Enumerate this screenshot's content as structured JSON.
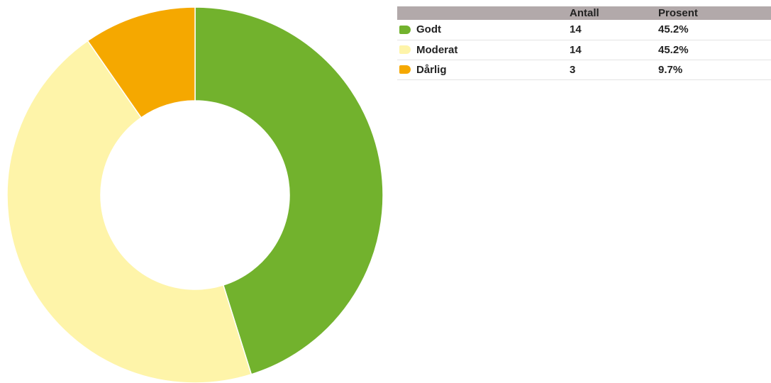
{
  "chart_data": {
    "type": "pie",
    "donut": true,
    "categories": [
      "Godt",
      "Moderat",
      "Dårlig"
    ],
    "values": [
      14,
      14,
      3
    ],
    "percents": [
      "45.2%",
      "45.2%",
      "9.7%"
    ],
    "colors": [
      "#72b22d",
      "#fef4a9",
      "#f5a800"
    ],
    "legend_placement": "right",
    "title": "",
    "xlabel": "",
    "ylabel": ""
  },
  "table": {
    "headers": {
      "name": "",
      "count": "Antall",
      "percent": "Prosent"
    }
  }
}
